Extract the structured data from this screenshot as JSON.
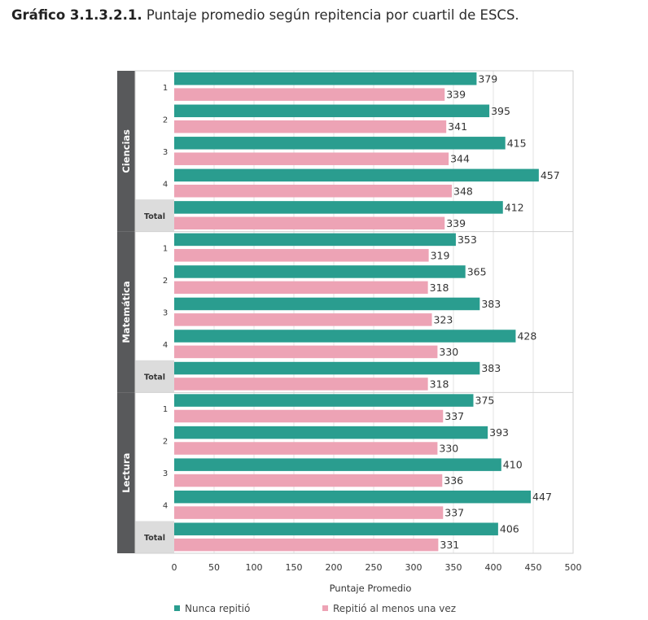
{
  "title": {
    "prefix": "Gráfico 3.1.3.2.1.",
    "text": "Puntaje promedio según repitencia por cuartil de ESCS."
  },
  "chart_data": {
    "type": "bar",
    "orientation": "horizontal",
    "xlabel": "Puntaje Promedio",
    "xlim": [
      0,
      500
    ],
    "xticks": [
      0,
      50,
      100,
      150,
      200,
      250,
      300,
      350,
      400,
      450,
      500
    ],
    "grid": true,
    "legend_position": "bottom",
    "categories": [
      "1",
      "2",
      "3",
      "4",
      "Total"
    ],
    "groups": [
      {
        "name": "Ciencias",
        "series": [
          {
            "name": "Nunca repitió",
            "values": [
              379,
              395,
              415,
              457,
              412
            ]
          },
          {
            "name": "Repitió al menos una vez",
            "values": [
              339,
              341,
              344,
              348,
              339
            ]
          }
        ]
      },
      {
        "name": "Matemática",
        "series": [
          {
            "name": "Nunca repitió",
            "values": [
              353,
              365,
              383,
              428,
              383
            ]
          },
          {
            "name": "Repitió al menos una vez",
            "values": [
              319,
              318,
              323,
              330,
              318
            ]
          }
        ]
      },
      {
        "name": "Lectura",
        "series": [
          {
            "name": "Nunca repitió",
            "values": [
              375,
              393,
              410,
              447,
              406
            ]
          },
          {
            "name": "Repitió al menos una vez",
            "values": [
              337,
              330,
              336,
              337,
              331
            ]
          }
        ]
      }
    ],
    "colors": {
      "Nunca repitió": "#2a9d8f",
      "Repitió al menos una vez": "#eda3b5",
      "group_band": "#58595b",
      "total_cell": "#dcdcdc"
    }
  },
  "legend": [
    {
      "label": "Nunca repitió",
      "color": "#2a9d8f"
    },
    {
      "label": "Repitió al menos una vez",
      "color": "#eda3b5"
    }
  ]
}
